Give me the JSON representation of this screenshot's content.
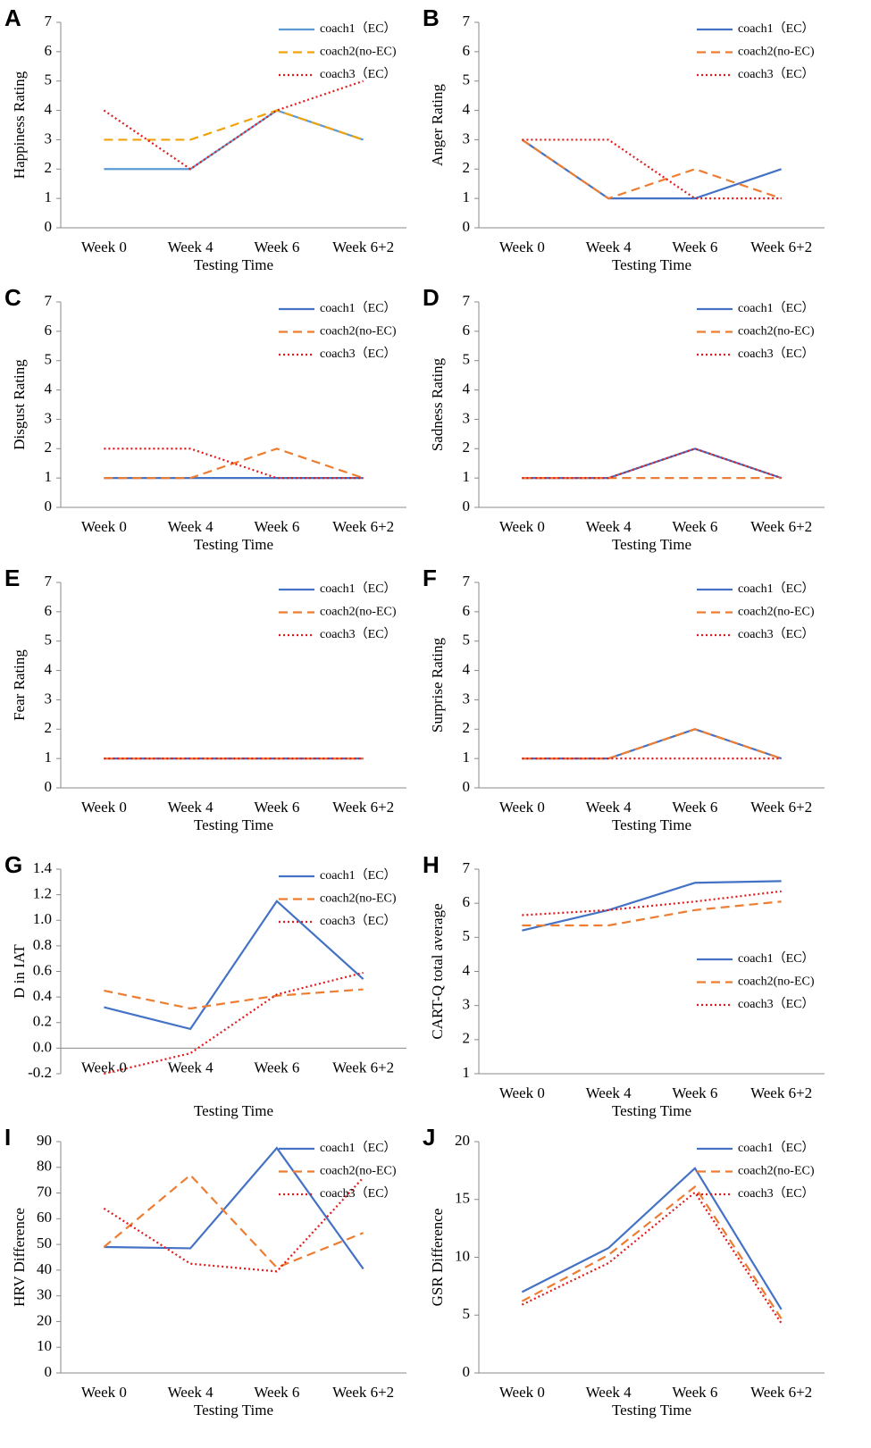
{
  "chart_data": [
    {
      "type": "line",
      "label": "A",
      "ylabel": "Happiness Rating",
      "xlabel": "Testing Time",
      "categories": [
        "Week 0",
        "Week 4",
        "Week 6",
        "Week 6+2"
      ],
      "ylim": [
        0,
        7
      ],
      "yticks": [
        0,
        1,
        2,
        3,
        4,
        5,
        6,
        7
      ],
      "legend": "upper right",
      "series": [
        {
          "name": "coach1（EC）",
          "color": "#5b9bd5",
          "dash": "solid",
          "values": [
            2,
            2,
            4,
            3
          ]
        },
        {
          "name": "coach2(no-EC)",
          "color": "#f0a30a",
          "dash": "dashed",
          "values": [
            3,
            3,
            4,
            3
          ]
        },
        {
          "name": "coach3（EC）",
          "color": "#e31a1c",
          "dash": "dotted",
          "values": [
            4,
            2,
            4,
            5
          ]
        }
      ]
    },
    {
      "type": "line",
      "label": "B",
      "ylabel": "Anger Rating",
      "xlabel": "Testing Time",
      "categories": [
        "Week 0",
        "Week 4",
        "Week 6",
        "Week 6+2"
      ],
      "ylim": [
        0,
        7
      ],
      "yticks": [
        0,
        1,
        2,
        3,
        4,
        5,
        6,
        7
      ],
      "legend": "upper right",
      "series": [
        {
          "name": "coach1（EC）",
          "color": "#4472c4",
          "dash": "solid",
          "values": [
            3,
            1,
            1,
            2
          ]
        },
        {
          "name": "coach2(no-EC)",
          "color": "#ed7d31",
          "dash": "dashed",
          "values": [
            3,
            1,
            2,
            1
          ]
        },
        {
          "name": "coach3（EC）",
          "color": "#e31a1c",
          "dash": "dotted",
          "values": [
            3,
            3,
            1,
            1
          ]
        }
      ]
    },
    {
      "type": "line",
      "label": "C",
      "ylabel": "Disgust Rating",
      "xlabel": "Testing Time",
      "categories": [
        "Week 0",
        "Week 4",
        "Week 6",
        "Week 6+2"
      ],
      "ylim": [
        0,
        7
      ],
      "yticks": [
        0,
        1,
        2,
        3,
        4,
        5,
        6,
        7
      ],
      "legend": "upper right",
      "series": [
        {
          "name": "coach1（EC）",
          "color": "#4472c4",
          "dash": "solid",
          "values": [
            1,
            1,
            1,
            1
          ]
        },
        {
          "name": "coach2(no-EC)",
          "color": "#ed7d31",
          "dash": "dashed",
          "values": [
            1,
            1,
            2,
            1
          ]
        },
        {
          "name": "coach3（EC）",
          "color": "#e31a1c",
          "dash": "dotted",
          "values": [
            2,
            2,
            1,
            1
          ]
        }
      ]
    },
    {
      "type": "line",
      "label": "D",
      "ylabel": "Sadness Rating",
      "xlabel": "Testing Time",
      "categories": [
        "Week 0",
        "Week 4",
        "Week 6",
        "Week 6+2"
      ],
      "ylim": [
        0,
        7
      ],
      "yticks": [
        0,
        1,
        2,
        3,
        4,
        5,
        6,
        7
      ],
      "legend": "upper right",
      "series": [
        {
          "name": "coach1（EC）",
          "color": "#4472c4",
          "dash": "solid",
          "values": [
            1,
            1,
            2,
            1
          ]
        },
        {
          "name": "coach2(no-EC)",
          "color": "#ed7d31",
          "dash": "dashed",
          "values": [
            1,
            1,
            1,
            1
          ]
        },
        {
          "name": "coach3（EC）",
          "color": "#e31a1c",
          "dash": "dotted",
          "values": [
            1,
            1,
            2,
            1
          ]
        }
      ]
    },
    {
      "type": "line",
      "label": "E",
      "ylabel": "Fear Rating",
      "xlabel": "Testing Time",
      "categories": [
        "Week 0",
        "Week 4",
        "Week 6",
        "Week 6+2"
      ],
      "ylim": [
        0,
        7
      ],
      "yticks": [
        0,
        1,
        2,
        3,
        4,
        5,
        6,
        7
      ],
      "legend": "upper right",
      "series": [
        {
          "name": "coach1（EC）",
          "color": "#4472c4",
          "dash": "solid",
          "values": [
            1,
            1,
            1,
            1
          ]
        },
        {
          "name": "coach2(no-EC)",
          "color": "#ed7d31",
          "dash": "dashed",
          "values": [
            1,
            1,
            1,
            1
          ]
        },
        {
          "name": "coach3（EC）",
          "color": "#e31a1c",
          "dash": "dotted",
          "values": [
            1,
            1,
            1,
            1
          ]
        }
      ]
    },
    {
      "type": "line",
      "label": "F",
      "ylabel": "Surprise Rating",
      "xlabel": "Testing Time",
      "categories": [
        "Week 0",
        "Week 4",
        "Week 6",
        "Week 6+2"
      ],
      "ylim": [
        0,
        7
      ],
      "yticks": [
        0,
        1,
        2,
        3,
        4,
        5,
        6,
        7
      ],
      "legend": "upper right",
      "series": [
        {
          "name": "coach1（EC）",
          "color": "#4472c4",
          "dash": "solid",
          "values": [
            1,
            1,
            2,
            1
          ]
        },
        {
          "name": "coach2(no-EC)",
          "color": "#ed7d31",
          "dash": "dashed",
          "values": [
            1,
            1,
            2,
            1
          ]
        },
        {
          "name": "coach3（EC）",
          "color": "#e31a1c",
          "dash": "dotted",
          "values": [
            1,
            1,
            1,
            1
          ]
        }
      ]
    },
    {
      "type": "line",
      "label": "G",
      "ylabel": "D in IAT",
      "xlabel": "Testing Time",
      "categories": [
        "Week 0",
        "Week 4",
        "Week 6",
        "Week 6+2"
      ],
      "ylim": [
        -0.2,
        1.4
      ],
      "yticks": [
        -0.2,
        {
          "value": 0,
          "label": "0.0"
        },
        0.2,
        0.4,
        0.6,
        0.8,
        {
          "value": 1,
          "label": "1.0"
        },
        1.2,
        1.4
      ],
      "legend": "upper right",
      "series": [
        {
          "name": "coach1（EC）",
          "color": "#4472c4",
          "dash": "solid",
          "values": [
            0.32,
            0.15,
            1.15,
            0.54
          ]
        },
        {
          "name": "coach2(no-EC)",
          "color": "#ed7d31",
          "dash": "dashed",
          "values": [
            0.45,
            0.31,
            0.41,
            0.46
          ]
        },
        {
          "name": "coach3（EC）",
          "color": "#e31a1c",
          "dash": "dotted",
          "values": [
            -0.2,
            -0.04,
            0.42,
            0.59
          ]
        }
      ]
    },
    {
      "type": "line",
      "label": "H",
      "ylabel": "CART-Q total average",
      "xlabel": "Testing Time",
      "categories": [
        "Week 0",
        "Week 4",
        "Week 6",
        "Week 6+2"
      ],
      "ylim": [
        1,
        7
      ],
      "yticks": [
        1,
        2,
        3,
        4,
        5,
        6,
        7
      ],
      "legend": "lower right",
      "series": [
        {
          "name": "coach1（EC）",
          "color": "#4472c4",
          "dash": "solid",
          "values": [
            5.2,
            5.8,
            6.6,
            6.65
          ]
        },
        {
          "name": "coach2(no-EC)",
          "color": "#ed7d31",
          "dash": "dashed",
          "values": [
            5.35,
            5.35,
            5.8,
            6.05
          ]
        },
        {
          "name": "coach3（EC）",
          "color": "#e31a1c",
          "dash": "dotted",
          "values": [
            5.65,
            5.8,
            6.05,
            6.35
          ]
        }
      ]
    },
    {
      "type": "line",
      "label": "I",
      "ylabel": "HRV Difference",
      "xlabel": "Testing Time",
      "categories": [
        "Week 0",
        "Week 4",
        "Week 6",
        "Week 6+2"
      ],
      "ylim": [
        0,
        90
      ],
      "yticks": [
        0,
        10,
        20,
        30,
        40,
        50,
        60,
        70,
        80,
        90
      ],
      "legend": "upper right",
      "series": [
        {
          "name": "coach1（EC）",
          "color": "#4472c4",
          "dash": "solid",
          "values": [
            49,
            48.5,
            87.5,
            40.5
          ]
        },
        {
          "name": "coach2(no-EC)",
          "color": "#ed7d31",
          "dash": "dashed",
          "values": [
            49,
            77,
            41,
            54.5
          ]
        },
        {
          "name": "coach3（EC）",
          "color": "#e31a1c",
          "dash": "dotted",
          "values": [
            64,
            42.5,
            39.5,
            76
          ]
        }
      ]
    },
    {
      "type": "line",
      "label": "J",
      "ylabel": "GSR Difference",
      "xlabel": "Testing Time",
      "categories": [
        "Week 0",
        "Week 4",
        "Week 6",
        "Week 6+2"
      ],
      "ylim": [
        0,
        20
      ],
      "yticks": [
        0,
        5,
        10,
        15,
        20
      ],
      "legend": "upper right",
      "series": [
        {
          "name": "coach1（EC）",
          "color": "#4472c4",
          "dash": "solid",
          "values": [
            7,
            10.8,
            17.7,
            5.5
          ]
        },
        {
          "name": "coach2(no-EC)",
          "color": "#ed7d31",
          "dash": "dashed",
          "values": [
            6.2,
            10.2,
            16.1,
            4.7
          ]
        },
        {
          "name": "coach3（EC）",
          "color": "#e31a1c",
          "dash": "dotted",
          "values": [
            5.9,
            9.5,
            15.6,
            4.3
          ]
        }
      ]
    }
  ]
}
